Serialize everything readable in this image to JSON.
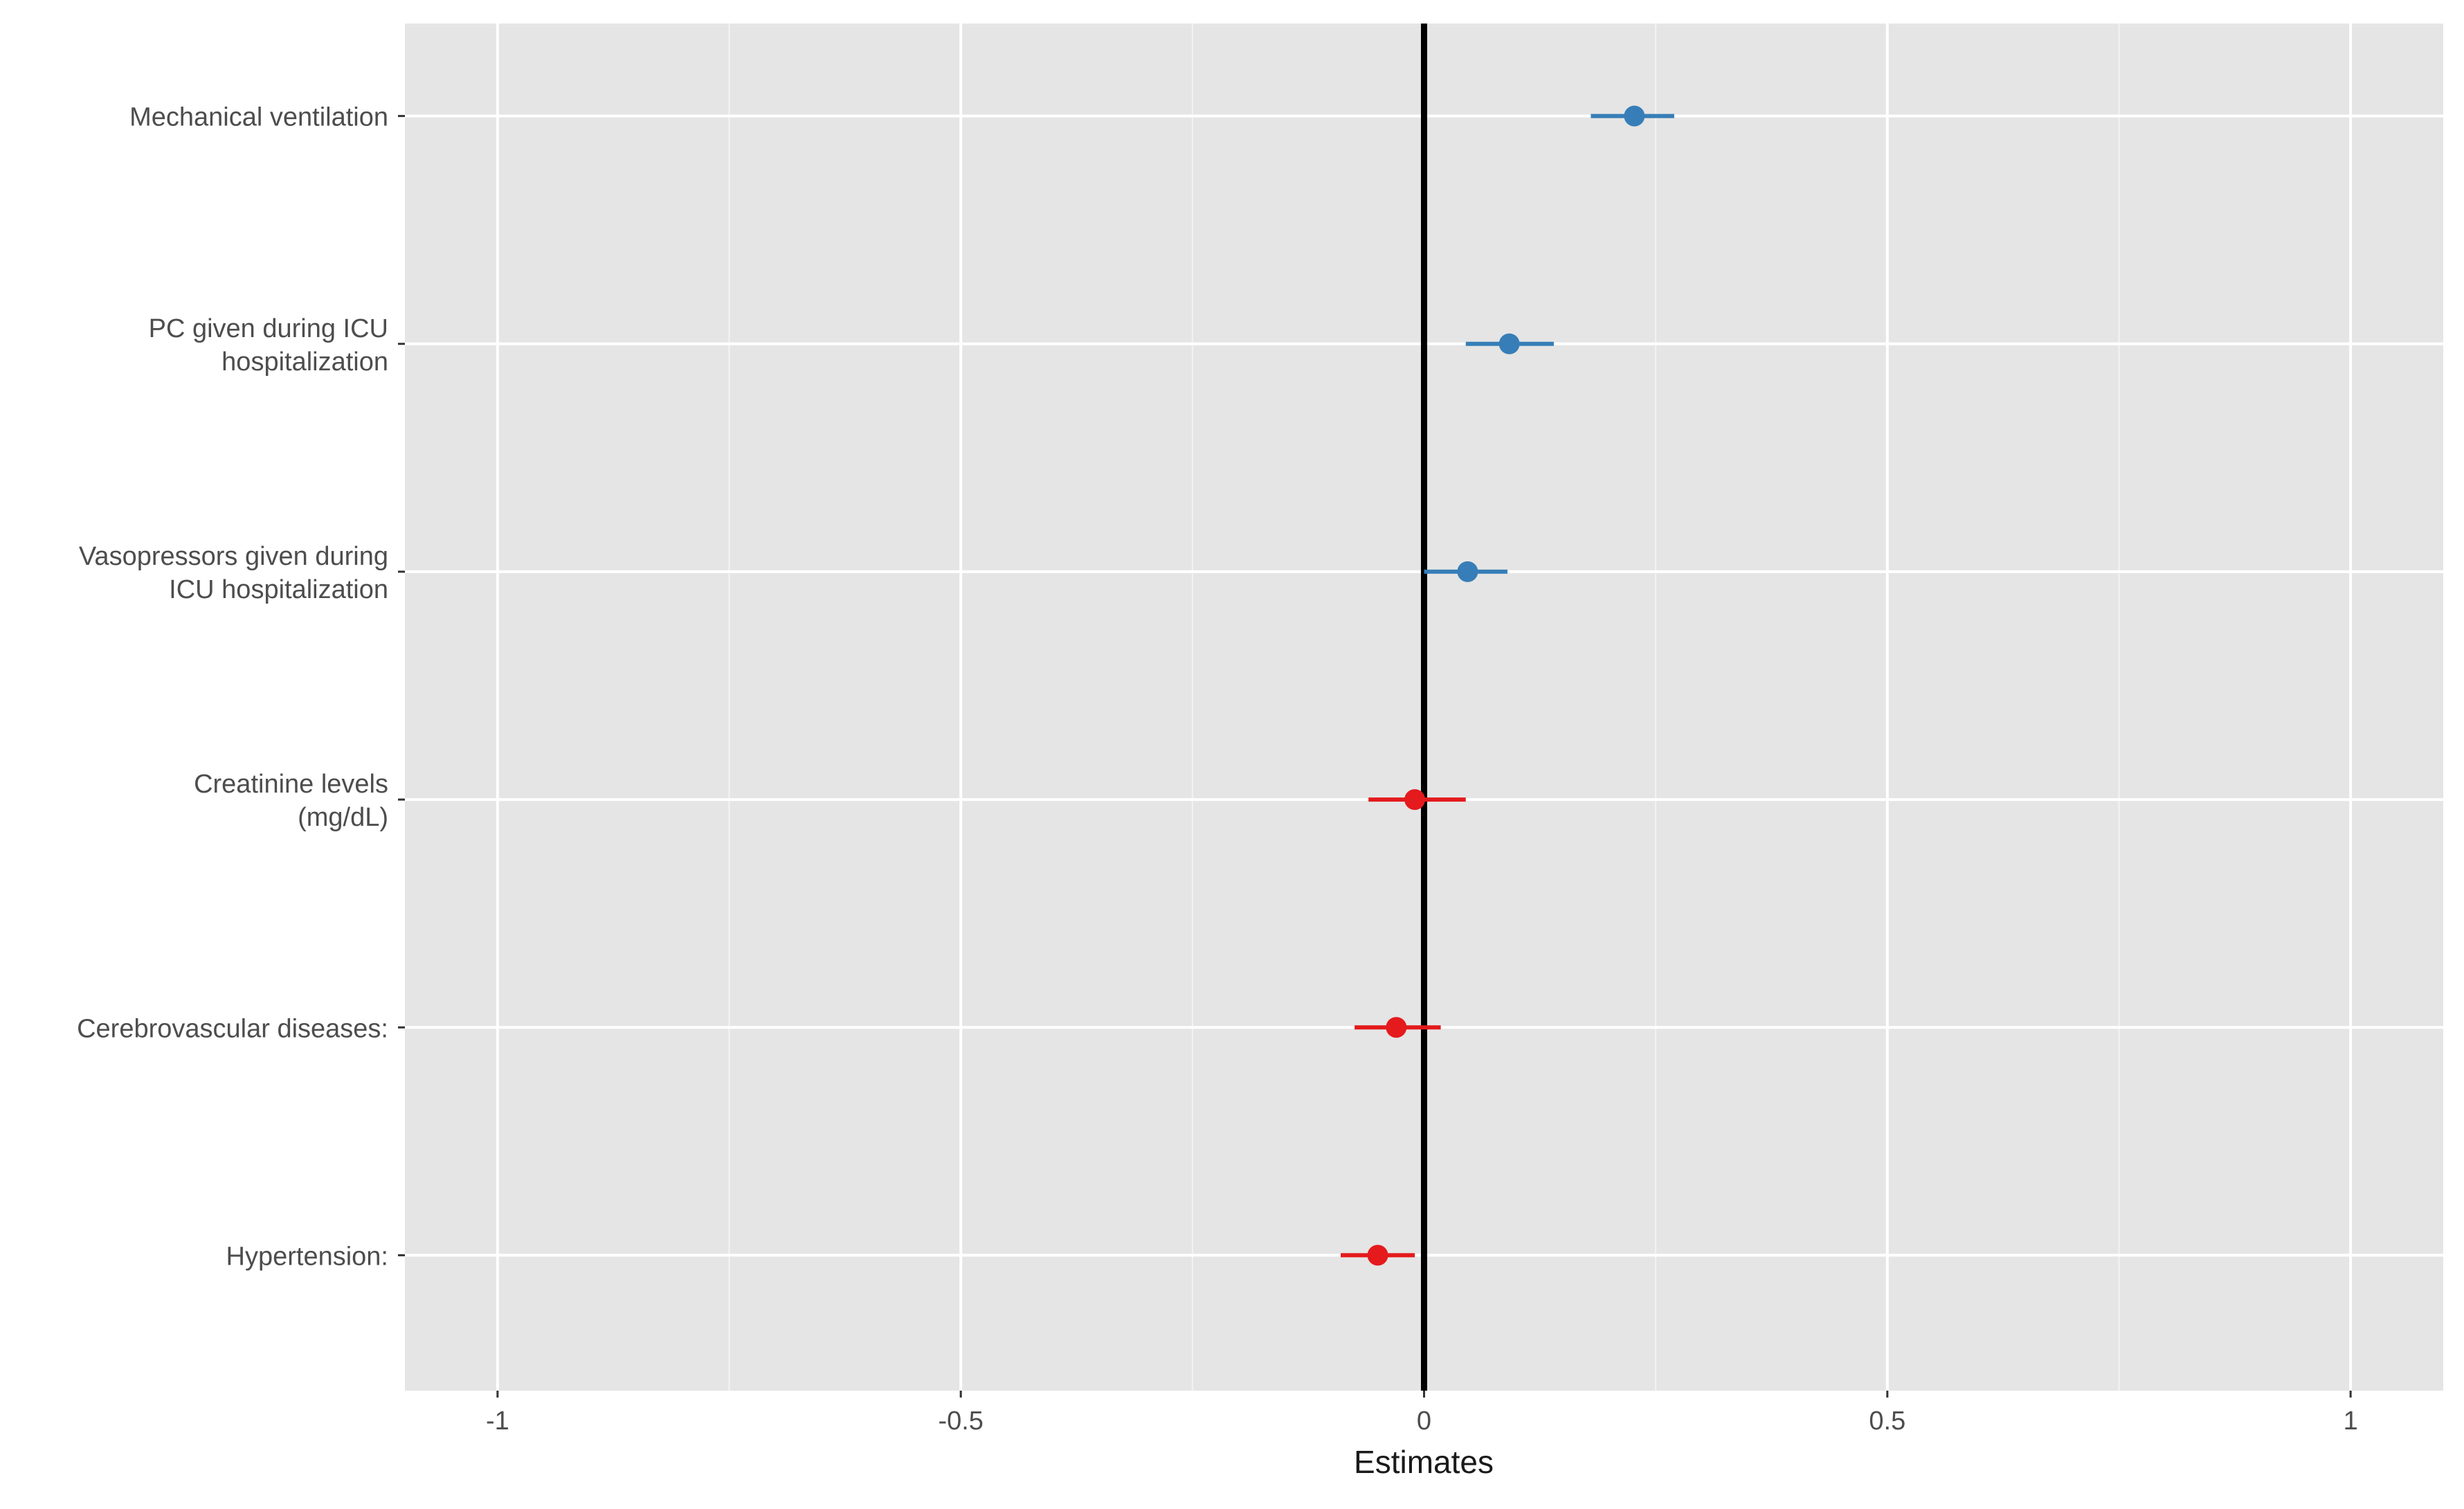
{
  "chart_data": {
    "type": "scatter",
    "subtype": "forest-plot",
    "title": "",
    "xlabel": "Estimates",
    "ylabel": "",
    "xlim": [
      -1.1,
      1.1
    ],
    "x_ticks": [
      -1,
      -0.5,
      0,
      0.5,
      1
    ],
    "x_tick_labels": [
      "-1",
      "-0.5",
      "0",
      "0.5",
      "1"
    ],
    "reference_line_x": 0,
    "grid": true,
    "legend": "none",
    "colors": {
      "positive": "#377eb8",
      "negative": "#e41a1c",
      "panel_background": "#e5e5e5",
      "grid": "#ffffff",
      "reference_line": "#000000"
    },
    "series": [
      {
        "label": [
          "Mechanical ventilation"
        ],
        "estimate": 0.227,
        "ci_low": 0.18,
        "ci_high": 0.27,
        "direction": "positive"
      },
      {
        "label": [
          "PC given during ICU",
          "hospitalization"
        ],
        "estimate": 0.092,
        "ci_low": 0.045,
        "ci_high": 0.14,
        "direction": "positive"
      },
      {
        "label": [
          "Vasopressors given during",
          "ICU hospitalization"
        ],
        "estimate": 0.047,
        "ci_low": 0.0,
        "ci_high": 0.09,
        "direction": "positive"
      },
      {
        "label": [
          "Creatinine levels",
          "(mg/dL)"
        ],
        "estimate": -0.01,
        "ci_low": -0.06,
        "ci_high": 0.045,
        "direction": "negative"
      },
      {
        "label": [
          "Cerebrovascular diseases:"
        ],
        "estimate": -0.03,
        "ci_low": -0.075,
        "ci_high": 0.018,
        "direction": "negative"
      },
      {
        "label": [
          "Hypertension:"
        ],
        "estimate": -0.05,
        "ci_low": -0.09,
        "ci_high": -0.01,
        "direction": "negative"
      }
    ]
  }
}
